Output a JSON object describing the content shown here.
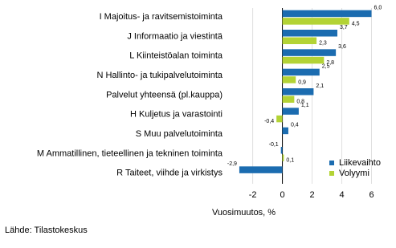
{
  "chart_data": {
    "type": "bar",
    "orientation": "horizontal",
    "categories": [
      "I Majoitus- ja ravitsemistoiminta",
      "J Informaatio ja viestintä",
      "L Kiinteistöalan toiminta",
      "N Hallinto- ja tukipalvelutoiminta",
      "Palvelut yhteensä (pl.kauppa)",
      "H Kuljetus ja varastointi",
      "S Muu palvelutoiminta",
      "M Ammatillinen, tieteellinen ja tekninen toiminta",
      "R Taiteet, viihde ja virkistys"
    ],
    "series": [
      {
        "name": "Liikevaihto",
        "color": "#1b6cb0",
        "values": [
          6.0,
          3.7,
          3.6,
          2.5,
          2.1,
          1.1,
          0.4,
          -0.1,
          -2.9
        ],
        "value_labels": [
          "6,0",
          "3,7",
          "3,6",
          "2,5",
          "2,1",
          "1,1",
          "0,4",
          "-0,1",
          "-2,9"
        ]
      },
      {
        "name": "Volyymi",
        "color": "#b3d335",
        "values": [
          4.5,
          2.3,
          2.8,
          0.9,
          0.8,
          -0.4,
          null,
          0.1,
          null
        ],
        "value_labels": [
          "4,5",
          "2,3",
          "2,8",
          "0,9",
          "0,8",
          "-0,4",
          null,
          "0,1",
          null
        ]
      }
    ],
    "xlim": [
      -3.6,
      7
    ],
    "xticks": [
      -2,
      0,
      2,
      4,
      6
    ],
    "grid": true,
    "legend": "lower right",
    "xlabel": "Vuosimuutos, %",
    "source": "Lähde: Tilastokeskus"
  }
}
